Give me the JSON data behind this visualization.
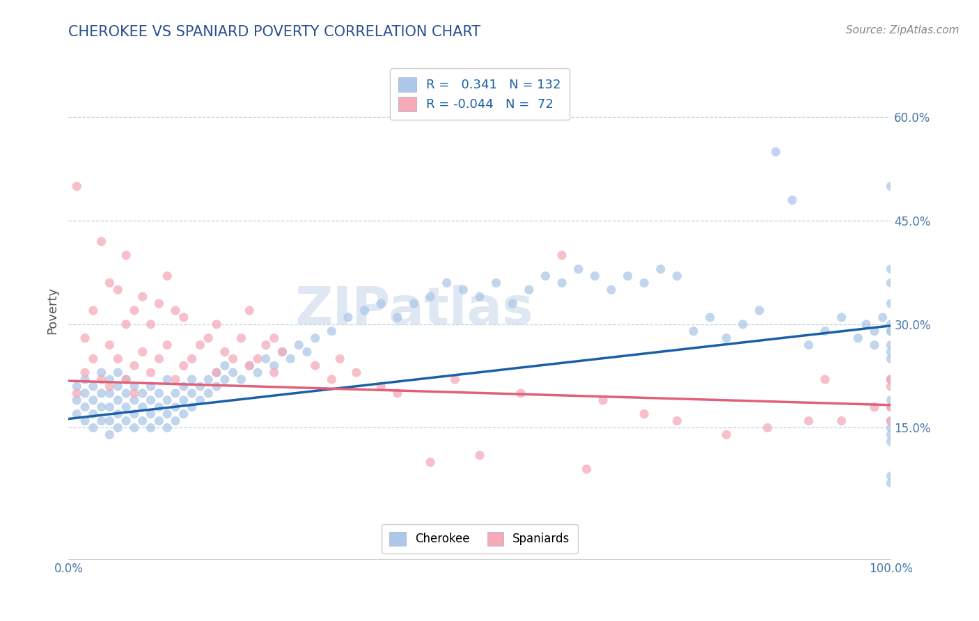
{
  "title": "CHEROKEE VS SPANIARD POVERTY CORRELATION CHART",
  "source": "Source: ZipAtlas.com",
  "ylabel": "Poverty",
  "xlim": [
    0.0,
    1.0
  ],
  "ylim": [
    -0.04,
    0.68
  ],
  "xticks": [
    0.0,
    1.0
  ],
  "xticklabels": [
    "0.0%",
    "100.0%"
  ],
  "yticks": [
    0.15,
    0.3,
    0.45,
    0.6
  ],
  "yticklabels": [
    "15.0%",
    "30.0%",
    "45.0%",
    "60.0%"
  ],
  "cherokee_color": "#adc8e8",
  "spaniard_color": "#f5aab8",
  "cherokee_line_color": "#1a5fa8",
  "spaniard_line_color": "#e0607a",
  "cherokee_R": 0.341,
  "cherokee_N": 132,
  "spaniard_R": -0.044,
  "spaniard_N": 72,
  "legend_label_cherokee": "Cherokee",
  "legend_label_spaniard": "Spaniards",
  "watermark": "ZIPatlas",
  "background_color": "#ffffff",
  "grid_color": "#c0cfe0",
  "title_color": "#2a5090",
  "tick_color": "#4477aa",
  "cherokee_x": [
    0.01,
    0.01,
    0.01,
    0.02,
    0.02,
    0.02,
    0.02,
    0.03,
    0.03,
    0.03,
    0.03,
    0.04,
    0.04,
    0.04,
    0.04,
    0.05,
    0.05,
    0.05,
    0.05,
    0.05,
    0.06,
    0.06,
    0.06,
    0.06,
    0.06,
    0.07,
    0.07,
    0.07,
    0.07,
    0.08,
    0.08,
    0.08,
    0.08,
    0.09,
    0.09,
    0.09,
    0.1,
    0.1,
    0.1,
    0.1,
    0.11,
    0.11,
    0.11,
    0.12,
    0.12,
    0.12,
    0.12,
    0.13,
    0.13,
    0.13,
    0.14,
    0.14,
    0.14,
    0.15,
    0.15,
    0.15,
    0.16,
    0.16,
    0.17,
    0.17,
    0.18,
    0.18,
    0.19,
    0.19,
    0.2,
    0.21,
    0.22,
    0.23,
    0.24,
    0.25,
    0.26,
    0.27,
    0.28,
    0.29,
    0.3,
    0.32,
    0.34,
    0.36,
    0.38,
    0.4,
    0.42,
    0.44,
    0.46,
    0.48,
    0.5,
    0.52,
    0.54,
    0.56,
    0.58,
    0.6,
    0.62,
    0.64,
    0.66,
    0.68,
    0.7,
    0.72,
    0.74,
    0.76,
    0.78,
    0.8,
    0.82,
    0.84,
    0.86,
    0.88,
    0.9,
    0.92,
    0.94,
    0.96,
    0.97,
    0.98,
    0.98,
    0.99,
    1.0,
    1.0,
    1.0,
    1.0,
    1.0,
    1.0,
    1.0,
    1.0,
    1.0,
    1.0,
    1.0,
    1.0,
    1.0,
    1.0,
    1.0,
    1.0,
    1.0,
    1.0,
    1.0,
    1.0
  ],
  "cherokee_y": [
    0.17,
    0.19,
    0.21,
    0.16,
    0.18,
    0.2,
    0.22,
    0.15,
    0.17,
    0.19,
    0.21,
    0.16,
    0.18,
    0.2,
    0.23,
    0.14,
    0.16,
    0.18,
    0.2,
    0.22,
    0.15,
    0.17,
    0.19,
    0.21,
    0.23,
    0.16,
    0.18,
    0.2,
    0.22,
    0.15,
    0.17,
    0.19,
    0.21,
    0.16,
    0.18,
    0.2,
    0.15,
    0.17,
    0.19,
    0.21,
    0.16,
    0.18,
    0.2,
    0.15,
    0.17,
    0.19,
    0.22,
    0.16,
    0.18,
    0.2,
    0.17,
    0.19,
    0.21,
    0.18,
    0.2,
    0.22,
    0.19,
    0.21,
    0.2,
    0.22,
    0.21,
    0.23,
    0.22,
    0.24,
    0.23,
    0.22,
    0.24,
    0.23,
    0.25,
    0.24,
    0.26,
    0.25,
    0.27,
    0.26,
    0.28,
    0.29,
    0.31,
    0.32,
    0.33,
    0.31,
    0.33,
    0.34,
    0.36,
    0.35,
    0.34,
    0.36,
    0.33,
    0.35,
    0.37,
    0.36,
    0.38,
    0.37,
    0.35,
    0.37,
    0.36,
    0.38,
    0.37,
    0.29,
    0.31,
    0.28,
    0.3,
    0.32,
    0.55,
    0.48,
    0.27,
    0.29,
    0.31,
    0.28,
    0.3,
    0.27,
    0.29,
    0.31,
    0.16,
    0.19,
    0.22,
    0.26,
    0.29,
    0.07,
    0.13,
    0.18,
    0.22,
    0.3,
    0.36,
    0.27,
    0.25,
    0.15,
    0.29,
    0.5,
    0.14,
    0.33,
    0.08,
    0.38
  ],
  "spaniard_x": [
    0.01,
    0.01,
    0.02,
    0.02,
    0.03,
    0.03,
    0.04,
    0.04,
    0.05,
    0.05,
    0.05,
    0.06,
    0.06,
    0.07,
    0.07,
    0.07,
    0.08,
    0.08,
    0.08,
    0.09,
    0.09,
    0.1,
    0.1,
    0.11,
    0.11,
    0.12,
    0.12,
    0.13,
    0.13,
    0.14,
    0.14,
    0.15,
    0.16,
    0.17,
    0.18,
    0.18,
    0.19,
    0.2,
    0.21,
    0.22,
    0.22,
    0.23,
    0.24,
    0.25,
    0.25,
    0.26,
    0.3,
    0.32,
    0.33,
    0.35,
    0.38,
    0.4,
    0.44,
    0.47,
    0.5,
    0.55,
    0.6,
    0.63,
    0.65,
    0.7,
    0.74,
    0.8,
    0.85,
    0.9,
    0.92,
    0.94,
    0.98,
    1.0,
    1.0,
    1.0,
    1.0,
    1.0
  ],
  "spaniard_y": [
    0.2,
    0.5,
    0.23,
    0.28,
    0.25,
    0.32,
    0.22,
    0.42,
    0.21,
    0.27,
    0.36,
    0.25,
    0.35,
    0.22,
    0.3,
    0.4,
    0.24,
    0.32,
    0.2,
    0.26,
    0.34,
    0.23,
    0.3,
    0.25,
    0.33,
    0.27,
    0.37,
    0.22,
    0.32,
    0.24,
    0.31,
    0.25,
    0.27,
    0.28,
    0.23,
    0.3,
    0.26,
    0.25,
    0.28,
    0.24,
    0.32,
    0.25,
    0.27,
    0.23,
    0.28,
    0.26,
    0.24,
    0.22,
    0.25,
    0.23,
    0.21,
    0.2,
    0.1,
    0.22,
    0.11,
    0.2,
    0.4,
    0.09,
    0.19,
    0.17,
    0.16,
    0.14,
    0.15,
    0.16,
    0.22,
    0.16,
    0.18,
    0.22,
    0.16,
    0.18,
    0.21,
    0.22
  ]
}
